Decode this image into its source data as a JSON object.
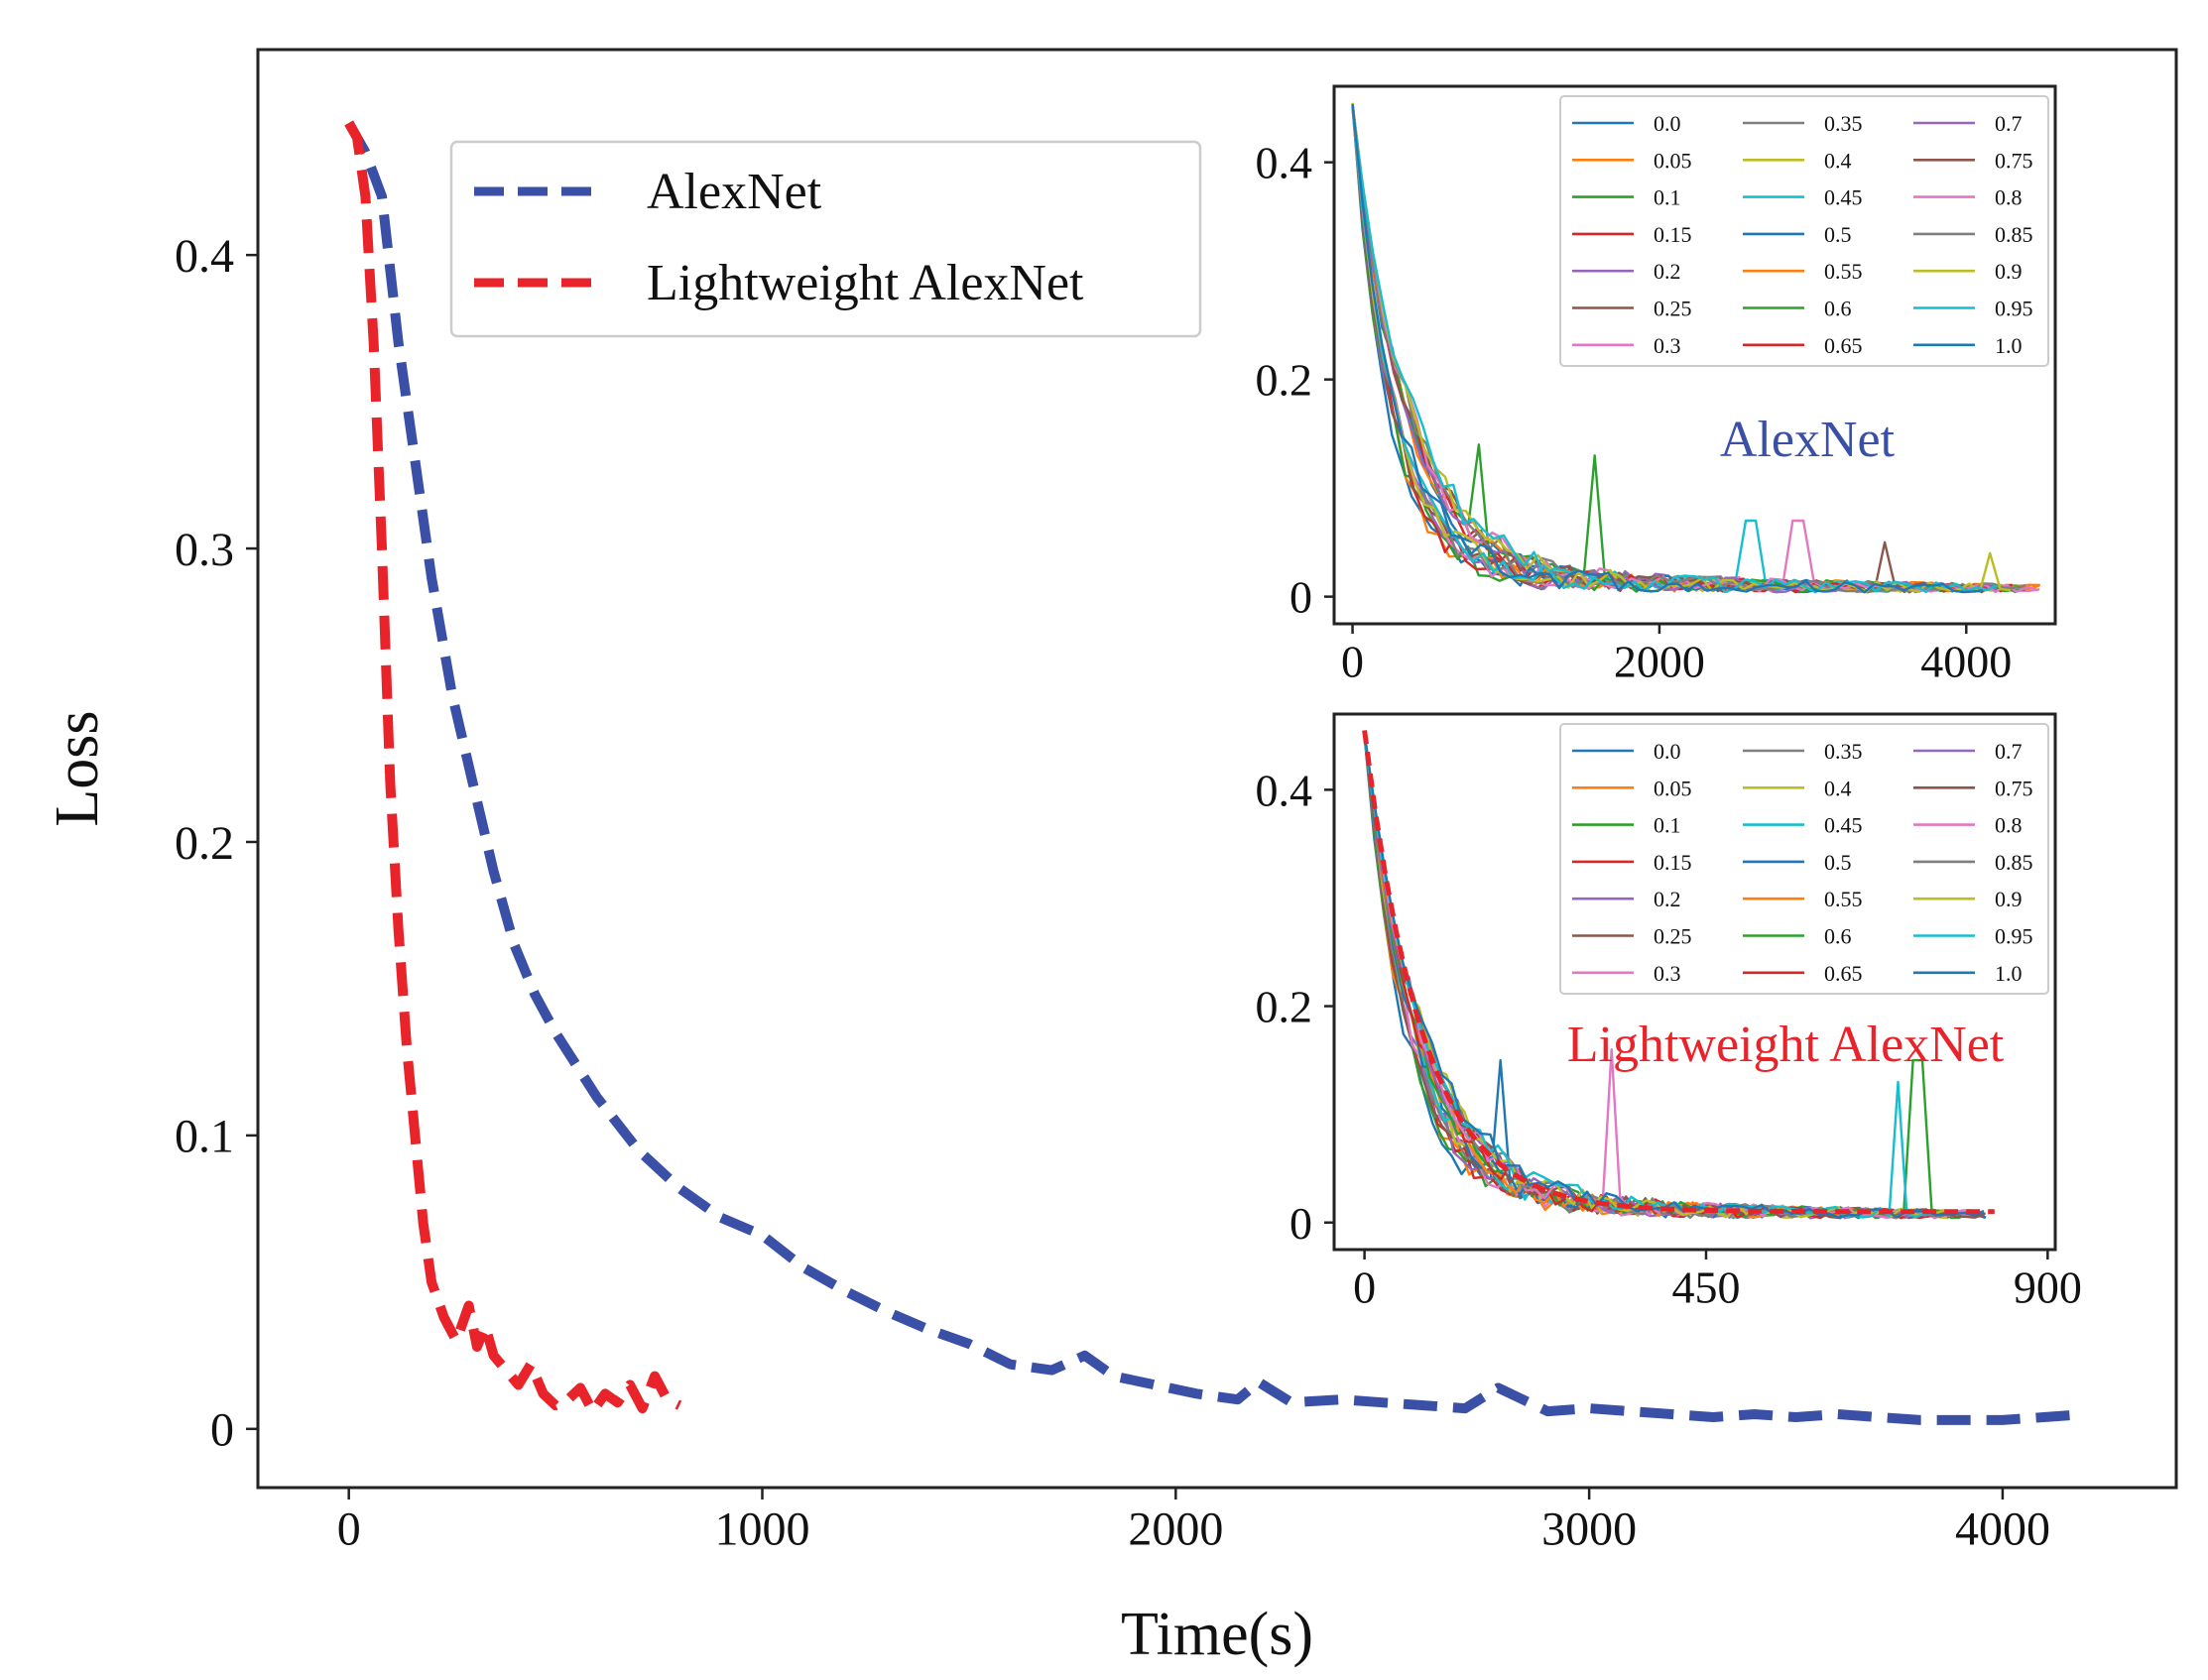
{
  "colors": {
    "alexnet": "#3a50a6",
    "lightweight": "#e8232a",
    "legend_border": "#cccccc",
    "palette": [
      "#1f77b4",
      "#ff7f0e",
      "#2ca02c",
      "#d62728",
      "#9467bd",
      "#8c564b",
      "#e377c2",
      "#7f7f7f",
      "#bcbd22",
      "#17becf"
    ]
  },
  "chart_data": [
    {
      "type": "line",
      "id": "main",
      "title": "",
      "xlabel": "Time(s)",
      "ylabel": "Loss",
      "xlim": [
        -220,
        4420
      ],
      "ylim": [
        -0.02,
        0.47
      ],
      "xticks": [
        0,
        1000,
        2000,
        3000,
        4000
      ],
      "xtick_labels": [
        "0",
        "1000",
        "2000",
        "3000",
        "4000"
      ],
      "yticks": [
        0,
        0.1,
        0.2,
        0.3,
        0.4
      ],
      "ytick_labels": [
        "0",
        "0.1",
        "0.2",
        "0.3",
        "0.4"
      ],
      "legend_position": "upper-center",
      "series": [
        {
          "name": "AlexNet",
          "style": "dashed",
          "x": [
            0,
            40,
            80,
            120,
            160,
            200,
            250,
            300,
            350,
            400,
            450,
            500,
            600,
            700,
            800,
            900,
            1000,
            1100,
            1200,
            1300,
            1400,
            1500,
            1600,
            1700,
            1780,
            1850,
            1950,
            2050,
            2150,
            2200,
            2280,
            2400,
            2500,
            2600,
            2700,
            2780,
            2900,
            3000,
            3100,
            3200,
            3300,
            3400,
            3500,
            3600,
            3700,
            3800,
            3900,
            4000,
            4100,
            4200
          ],
          "y": [
            0.445,
            0.435,
            0.42,
            0.37,
            0.33,
            0.29,
            0.25,
            0.22,
            0.19,
            0.165,
            0.148,
            0.135,
            0.113,
            0.095,
            0.082,
            0.072,
            0.066,
            0.055,
            0.047,
            0.04,
            0.034,
            0.029,
            0.022,
            0.02,
            0.025,
            0.018,
            0.015,
            0.012,
            0.01,
            0.016,
            0.009,
            0.01,
            0.009,
            0.008,
            0.007,
            0.014,
            0.006,
            0.007,
            0.006,
            0.005,
            0.004,
            0.005,
            0.004,
            0.005,
            0.004,
            0.003,
            0.003,
            0.003,
            0.004,
            0.005
          ]
        },
        {
          "name": "Lightweight AlexNet",
          "style": "dashed",
          "x": [
            0,
            20,
            40,
            60,
            80,
            100,
            120,
            140,
            160,
            180,
            200,
            230,
            260,
            290,
            310,
            330,
            350,
            380,
            410,
            440,
            470,
            500,
            530,
            560,
            590,
            620,
            650,
            680,
            710,
            740,
            770,
            800
          ],
          "y": [
            0.445,
            0.44,
            0.42,
            0.37,
            0.3,
            0.22,
            0.17,
            0.13,
            0.1,
            0.07,
            0.05,
            0.038,
            0.03,
            0.042,
            0.028,
            0.035,
            0.025,
            0.02,
            0.015,
            0.022,
            0.012,
            0.008,
            0.01,
            0.014,
            0.006,
            0.012,
            0.009,
            0.015,
            0.007,
            0.018,
            0.01,
            0.008
          ]
        }
      ]
    },
    {
      "type": "line",
      "id": "inset_alexnet",
      "title": "AlexNet",
      "xlim": [
        -120,
        4580
      ],
      "ylim": [
        -0.025,
        0.47
      ],
      "xticks": [
        0,
        2000,
        4000
      ],
      "xtick_labels": [
        "0",
        "2000",
        "4000"
      ],
      "yticks": [
        0,
        0.2,
        0.4
      ],
      "ytick_labels": [
        "0",
        "0.2",
        "0.4"
      ],
      "legend_position": "top-right",
      "legend_entries": [
        "0.0",
        "0.05",
        "0.1",
        "0.15",
        "0.2",
        "0.25",
        "0.3",
        "0.35",
        "0.4",
        "0.45",
        "0.5",
        "0.55",
        "0.6",
        "0.65",
        "0.7",
        "0.75",
        "0.8",
        "0.85",
        "0.9",
        "0.95",
        "1.0"
      ],
      "x_end": 4500,
      "num_series": 21,
      "decay_tau": 300,
      "noise_amp": 0.03,
      "spikes": [
        {
          "series": "0.1",
          "x": 1600,
          "y": 0.13
        },
        {
          "series": "0.1",
          "x": 800,
          "y": 0.14
        },
        {
          "series": "0.3",
          "x": 2900,
          "y": 0.07
        },
        {
          "series": "0.45",
          "x": 2600,
          "y": 0.07
        },
        {
          "series": "0.75",
          "x": 3450,
          "y": 0.05
        },
        {
          "series": "0.9",
          "x": 4150,
          "y": 0.04
        }
      ]
    },
    {
      "type": "line",
      "id": "inset_lightweight",
      "title": "Lightweight AlexNet",
      "xlim": [
        -40,
        910
      ],
      "ylim": [
        -0.025,
        0.47
      ],
      "xticks": [
        0,
        450,
        900
      ],
      "xtick_labels": [
        "0",
        "450",
        "900"
      ],
      "yticks": [
        0,
        0.2,
        0.4
      ],
      "ytick_labels": [
        "0",
        "0.2",
        "0.4"
      ],
      "legend_position": "top-right",
      "legend_entries": [
        "0.0",
        "0.05",
        "0.1",
        "0.15",
        "0.2",
        "0.25",
        "0.3",
        "0.35",
        "0.4",
        "0.45",
        "0.5",
        "0.55",
        "0.6",
        "0.65",
        "0.7",
        "0.75",
        "0.8",
        "0.85",
        "0.9",
        "0.95",
        "1.0"
      ],
      "x_end": 830,
      "num_series": 21,
      "decay_tau": 70,
      "noise_amp": 0.03,
      "spikes": [
        {
          "series": "0.3",
          "x": 330,
          "y": 0.16
        },
        {
          "series": "0.6",
          "x": 730,
          "y": 0.15
        },
        {
          "series": "0.95",
          "x": 700,
          "y": 0.13
        },
        {
          "series": "0.0",
          "x": 180,
          "y": 0.15
        }
      ]
    }
  ]
}
